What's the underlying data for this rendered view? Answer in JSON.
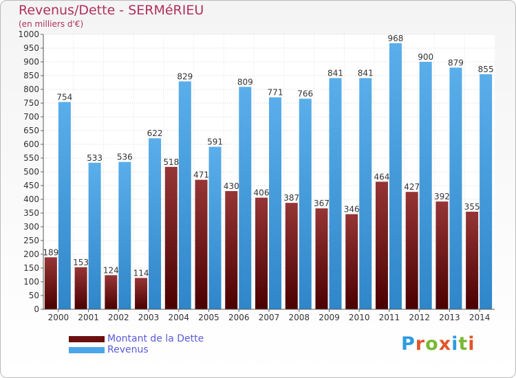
{
  "header": {
    "title": "Revenus/Dette - SERMéRIEU",
    "subtitle": "(en milliers d'€)"
  },
  "chart_data": {
    "type": "bar",
    "categories": [
      "2000",
      "2001",
      "2002",
      "2003",
      "2004",
      "2005",
      "2006",
      "2007",
      "2008",
      "2009",
      "2010",
      "2011",
      "2012",
      "2013",
      "2014"
    ],
    "series": [
      {
        "name": "Montant de la Dette",
        "color": "#8b1a1a",
        "values": [
          189,
          153,
          124,
          114,
          518,
          471,
          430,
          406,
          387,
          367,
          346,
          464,
          427,
          392,
          355
        ]
      },
      {
        "name": "Revenus",
        "color": "#3a9fe4",
        "values": [
          754,
          533,
          536,
          622,
          829,
          591,
          809,
          771,
          766,
          841,
          841,
          968,
          900,
          879,
          855
        ]
      }
    ],
    "ylim": [
      0,
      1000
    ],
    "yticks": [
      "0",
      "50",
      "100",
      "150",
      "200",
      "250",
      "300",
      "350",
      "400",
      "450",
      "500",
      "550",
      "600",
      "650",
      "700",
      "750",
      "800",
      "850",
      "900",
      "950",
      "1000"
    ],
    "grid": true,
    "legend_position": "bottom-left"
  },
  "legend": {
    "items": [
      {
        "label": "Montant de la Dette",
        "color": "#6b0f0f",
        "text_color": "#5a5ad8"
      },
      {
        "label": "Revenus",
        "color": "#4aa6e8",
        "text_color": "#5a5ad8"
      }
    ]
  },
  "logo": {
    "letters": [
      "P",
      "r",
      "o",
      "x",
      "i",
      "t",
      "i"
    ],
    "colors": [
      "#2e9be0",
      "#e0562a",
      "#78b833",
      "#e0562a",
      "#2e9be0",
      "#78b833",
      "#e0562a"
    ]
  }
}
